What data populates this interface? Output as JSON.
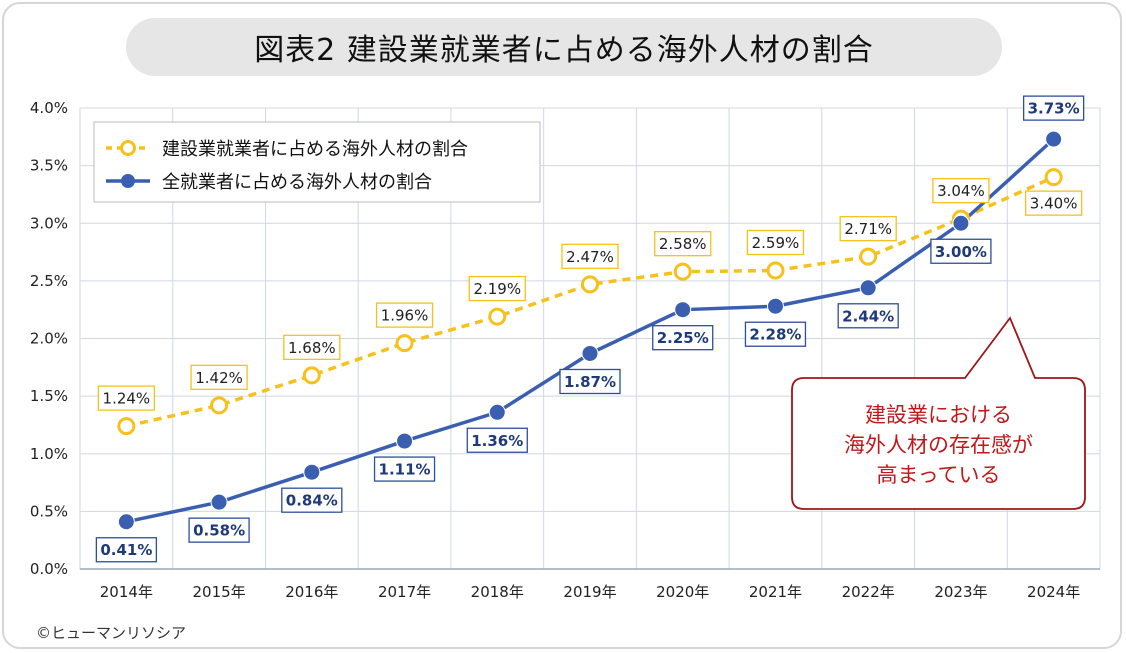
{
  "chart_data": {
    "type": "line",
    "title": "図表2 建設業就業者に占める海外人材の割合",
    "categories": [
      "2014年",
      "2015年",
      "2016年",
      "2017年",
      "2018年",
      "2019年",
      "2020年",
      "2021年",
      "2022年",
      "2023年",
      "2024年"
    ],
    "ylim": [
      0,
      4.0
    ],
    "yticks": [
      "0.0%",
      "0.5%",
      "1.0%",
      "1.5%",
      "2.0%",
      "2.5%",
      "3.0%",
      "3.5%",
      "4.0%"
    ],
    "series": [
      {
        "name": "建設業就業者に占める海外人材の割合",
        "color": "#f5c11a",
        "style": "dashed",
        "values": [
          1.24,
          1.42,
          1.68,
          1.96,
          2.19,
          2.47,
          2.58,
          2.59,
          2.71,
          3.04,
          3.4
        ],
        "labels": [
          "1.24%",
          "1.42%",
          "1.68%",
          "1.96%",
          "2.19%",
          "2.47%",
          "2.58%",
          "2.59%",
          "2.71%",
          "3.04%",
          "3.40%"
        ]
      },
      {
        "name": "全就業者に占める海外人材の割合",
        "color": "#3b5fb0",
        "style": "solid",
        "values": [
          0.41,
          0.58,
          0.84,
          1.11,
          1.36,
          1.87,
          2.25,
          2.28,
          2.44,
          3.0,
          3.73
        ],
        "labels": [
          "0.41%",
          "0.58%",
          "0.84%",
          "1.11%",
          "1.36%",
          "1.87%",
          "2.25%",
          "2.28%",
          "2.44%",
          "3.00%",
          "3.73%"
        ]
      }
    ],
    "annotation": [
      "建設業における",
      "海外人材の存在感が",
      "高まっている"
    ],
    "annotation_color": "#c0181b",
    "grid": true,
    "legend": "top-left"
  },
  "copyright": "©ヒューマンリソシア"
}
